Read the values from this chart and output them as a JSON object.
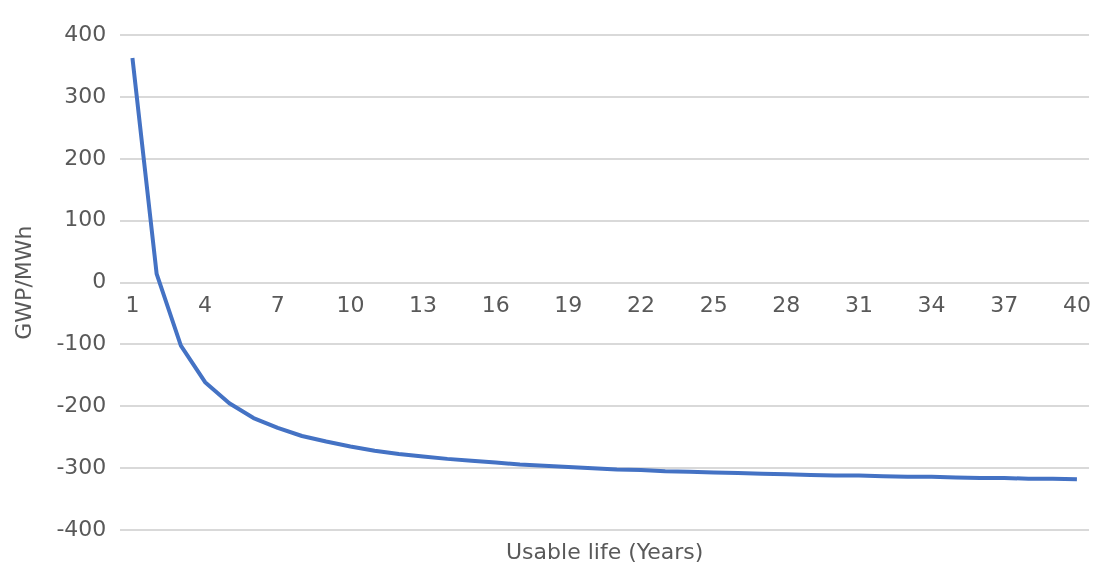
{
  "chart_data": {
    "type": "line",
    "xlabel": "Usable life (Years)",
    "ylabel": "GWP/MWh",
    "categories": [
      "1",
      null,
      null,
      "4",
      null,
      null,
      "7",
      null,
      null,
      "10",
      null,
      null,
      "13",
      null,
      null,
      "16",
      null,
      null,
      "19",
      null,
      null,
      "22",
      null,
      null,
      "25",
      null,
      null,
      "28",
      null,
      null,
      "31",
      null,
      null,
      "34",
      null,
      null,
      "37",
      null,
      null,
      "40"
    ],
    "series": [
      {
        "color": "#4472c4",
        "values": [
          363,
          14,
          -102,
          -161,
          -195,
          -219,
          -235,
          -248,
          -257,
          -265,
          -272,
          -277,
          -281,
          -285,
          -288,
          -291,
          -294,
          -296,
          -298,
          -300,
          -302,
          -303,
          -305,
          -306,
          -307,
          -308,
          -309,
          -310,
          -311,
          -312,
          -312,
          -313,
          -314,
          -314,
          -315,
          -316,
          -316,
          -317,
          -317,
          -318
        ]
      }
    ],
    "ylim": [
      -400,
      400
    ],
    "yticks": [
      -400,
      -300,
      -200,
      -100,
      0,
      100,
      200,
      300,
      400
    ],
    "grid": "y",
    "legend": false,
    "marker": "none",
    "line_style": "solid"
  }
}
